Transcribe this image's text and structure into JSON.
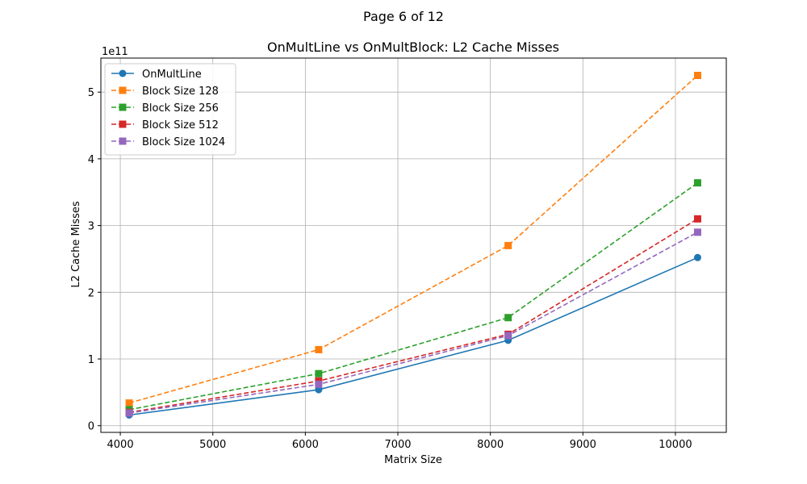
{
  "page": {
    "label": "Page 6 of 12"
  },
  "chart_data": {
    "type": "line",
    "title": "OnMultLine vs OnMultBlock: L2 Cache Misses",
    "xlabel": "Matrix Size",
    "ylabel": "L2 Cache Misses",
    "y_offset_label": "1e11",
    "y_scale": 100000000000.0,
    "xlim": [
      3790,
      10550
    ],
    "ylim": [
      -10000000000.0,
      551000000000.0
    ],
    "x_ticks": [
      4000,
      5000,
      6000,
      7000,
      8000,
      9000,
      10000
    ],
    "y_ticks": [
      0,
      1,
      2,
      3,
      4,
      5
    ],
    "grid": true,
    "legend": "top-left",
    "x": [
      4096,
      6144,
      8192,
      10240
    ],
    "series": [
      {
        "name": "OnMultLine",
        "values": [
          16000000000.0,
          54000000000.0,
          128000000000.0,
          252000000000.0
        ],
        "color": "#1f77b4",
        "marker": "circle",
        "dash": "solid"
      },
      {
        "name": "Block Size 128",
        "values": [
          34000000000.0,
          114000000000.0,
          270000000000.0,
          525000000000.0
        ],
        "color": "#ff7f0e",
        "marker": "square",
        "dash": "dashed"
      },
      {
        "name": "Block Size 256",
        "values": [
          24000000000.0,
          78000000000.0,
          162000000000.0,
          364000000000.0
        ],
        "color": "#2ca02c",
        "marker": "square",
        "dash": "dashed"
      },
      {
        "name": "Block Size 512",
        "values": [
          20000000000.0,
          67000000000.0,
          137000000000.0,
          310000000000.0
        ],
        "color": "#d62728",
        "marker": "square",
        "dash": "dashed"
      },
      {
        "name": "Block Size 1024",
        "values": [
          19000000000.0,
          62000000000.0,
          135000000000.0,
          290000000000.0
        ],
        "color": "#9467bd",
        "marker": "square",
        "dash": "dashed"
      }
    ]
  }
}
